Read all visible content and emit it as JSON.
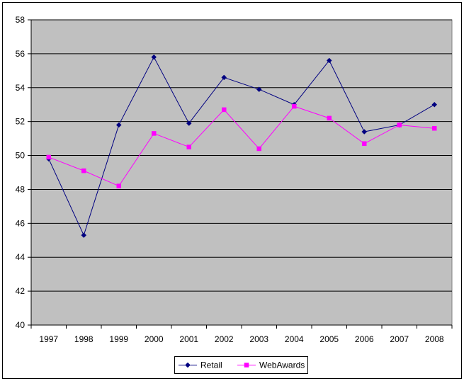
{
  "chart_data": {
    "type": "line",
    "title": "",
    "xlabel": "",
    "ylabel": "",
    "categories": [
      "1997",
      "1998",
      "1999",
      "2000",
      "2001",
      "2002",
      "2003",
      "2004",
      "2005",
      "2006",
      "2007",
      "2008"
    ],
    "ylim": [
      40,
      58
    ],
    "yticks": [
      40,
      42,
      44,
      46,
      48,
      50,
      52,
      54,
      56,
      58
    ],
    "grid": true,
    "legend_position": "bottom",
    "plot_background": "#c0c0c0",
    "series": [
      {
        "name": "Retail",
        "color": "#000080",
        "marker": "diamond",
        "values": [
          49.8,
          45.3,
          51.8,
          55.8,
          51.9,
          54.6,
          53.9,
          53.0,
          55.6,
          51.4,
          51.8,
          53.0
        ]
      },
      {
        "name": "WebAwards",
        "color": "#ff00ff",
        "marker": "square",
        "values": [
          49.9,
          49.1,
          48.2,
          51.3,
          50.5,
          52.7,
          50.4,
          52.9,
          52.2,
          50.7,
          51.8,
          51.6
        ]
      }
    ]
  }
}
